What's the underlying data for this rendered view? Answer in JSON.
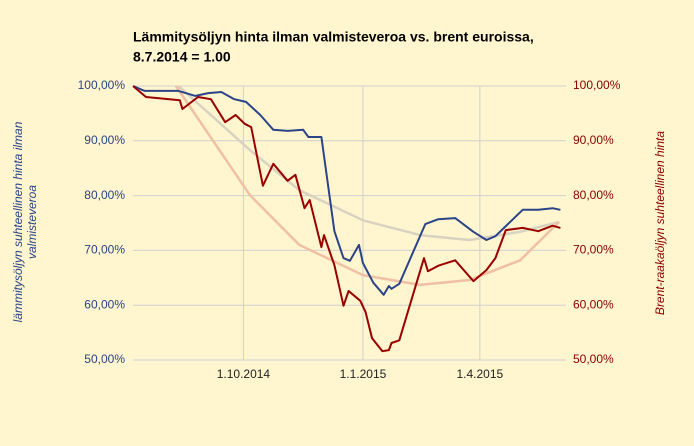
{
  "chart_data": {
    "type": "line",
    "title": [
      "Lämmitysöljyn hinta ilman valmisteveroa vs. brent euroissa,",
      "8.7.2014 = 1.00"
    ],
    "ylabel": "lämmitysöljyn suhteellinen hinta ilman valmisteveroa",
    "y2label": "Brent-raakaöljyn suhteellinen hinta",
    "xlim": [
      "2014-07-08",
      "2015-06-04"
    ],
    "xticks": [
      {
        "value": "2014-10-01",
        "label": "1.10.2014"
      },
      {
        "value": "2015-01-01",
        "label": "1.1.2015"
      },
      {
        "value": "2015-04-01",
        "label": "1.4.2015"
      }
    ],
    "ylim": [
      50,
      100
    ],
    "yticks": [
      {
        "value": 50,
        "label": "50,00%"
      },
      {
        "value": 60,
        "label": "60,00%"
      },
      {
        "value": 70,
        "label": "70,00%"
      },
      {
        "value": 80,
        "label": "80,00%"
      },
      {
        "value": 90,
        "label": "90,00%"
      },
      {
        "value": 100,
        "label": "100,00%"
      }
    ],
    "y2lim": [
      50,
      100
    ],
    "y2ticks": [
      {
        "value": 50,
        "label": "50,00%"
      },
      {
        "value": 60,
        "label": "60,00%"
      },
      {
        "value": 70,
        "label": "70,00%"
      },
      {
        "value": 80,
        "label": "80,00%"
      },
      {
        "value": 90,
        "label": "90,00%"
      },
      {
        "value": 100,
        "label": "100,00%"
      }
    ],
    "grid": true,
    "ycolor": "#2b4488",
    "y2color": "#8b0000",
    "series": [
      {
        "color": "#d8d2c0",
        "width": 2.5,
        "axis": "y",
        "x": [
          "2014-08-12",
          "2014-10-06",
          "2014-11-13",
          "2015-01-01",
          "2015-02-14",
          "2015-03-24",
          "2015-05-02",
          "2015-06-01"
        ],
        "values": [
          100,
          88.3,
          81.0,
          75.5,
          72.8,
          71.9,
          73.4,
          75.2
        ]
      },
      {
        "color": "#efc0a4",
        "width": 2.5,
        "axis": "y2",
        "x": [
          "2014-08-10",
          "2014-10-06",
          "2014-11-13",
          "2015-01-01",
          "2015-02-14",
          "2015-03-24",
          "2015-05-02",
          "2015-06-01"
        ],
        "values": [
          100,
          80.1,
          71.0,
          65.5,
          63.7,
          64.6,
          68.2,
          75.2
        ]
      },
      {
        "color": "#2b4488",
        "width": 2,
        "axis": "y",
        "x": [
          "2014-07-08",
          "2014-07-17",
          "2014-08-12",
          "2014-08-25",
          "2014-09-04",
          "2014-09-14",
          "2014-09-24",
          "2014-10-03",
          "2014-10-14",
          "2014-10-24",
          "2014-11-04",
          "2014-11-16",
          "2014-11-20",
          "2014-11-30",
          "2014-12-10",
          "2014-12-17",
          "2014-12-22",
          "2014-12-29",
          "2015-01-01",
          "2015-01-09",
          "2015-01-17",
          "2015-01-21",
          "2015-01-23",
          "2015-01-29",
          "2015-02-18",
          "2015-02-28",
          "2015-03-13",
          "2015-03-27",
          "2015-04-06",
          "2015-04-13",
          "2015-05-04",
          "2015-05-16",
          "2015-05-27",
          "2015-06-02"
        ],
        "values": [
          100,
          99.1,
          99.1,
          98.2,
          98.7,
          98.9,
          97.6,
          97.1,
          94.7,
          92.0,
          91.8,
          92.0,
          90.7,
          90.7,
          73.5,
          68.6,
          68.1,
          71.0,
          67.7,
          64.1,
          61.9,
          63.5,
          63.0,
          63.9,
          74.8,
          75.7,
          75.9,
          73.4,
          71.9,
          72.6,
          77.4,
          77.4,
          77.7,
          77.4
        ]
      },
      {
        "color": "#990000",
        "width": 2,
        "axis": "y2",
        "x": [
          "2014-07-08",
          "2014-07-18",
          "2014-08-13",
          "2014-08-15",
          "2014-08-27",
          "2014-09-06",
          "2014-09-17",
          "2014-09-25",
          "2014-10-02",
          "2014-10-07",
          "2014-10-16",
          "2014-10-24",
          "2014-11-04",
          "2014-11-10",
          "2014-11-17",
          "2014-11-21",
          "2014-11-30",
          "2014-12-02",
          "2014-12-10",
          "2014-12-17",
          "2014-12-21",
          "2014-12-30",
          "2015-01-03",
          "2015-01-08",
          "2015-01-16",
          "2015-01-21",
          "2015-01-23",
          "2015-01-29",
          "2015-02-17",
          "2015-02-20",
          "2015-02-28",
          "2015-03-13",
          "2015-03-27",
          "2015-04-06",
          "2015-04-13",
          "2015-04-21",
          "2015-05-04",
          "2015-05-16",
          "2015-05-27",
          "2015-06-02"
        ],
        "values": [
          100,
          98.0,
          97.4,
          95.8,
          98.0,
          97.6,
          93.4,
          94.7,
          93.1,
          92.5,
          81.8,
          85.8,
          82.7,
          83.8,
          77.7,
          79.2,
          70.6,
          72.8,
          67.3,
          59.9,
          62.6,
          60.8,
          58.8,
          54.0,
          51.6,
          51.8,
          53.1,
          53.6,
          68.6,
          66.2,
          67.2,
          68.2,
          64.4,
          66.4,
          68.6,
          73.7,
          74.1,
          73.5,
          74.5,
          74.1
        ]
      }
    ]
  }
}
